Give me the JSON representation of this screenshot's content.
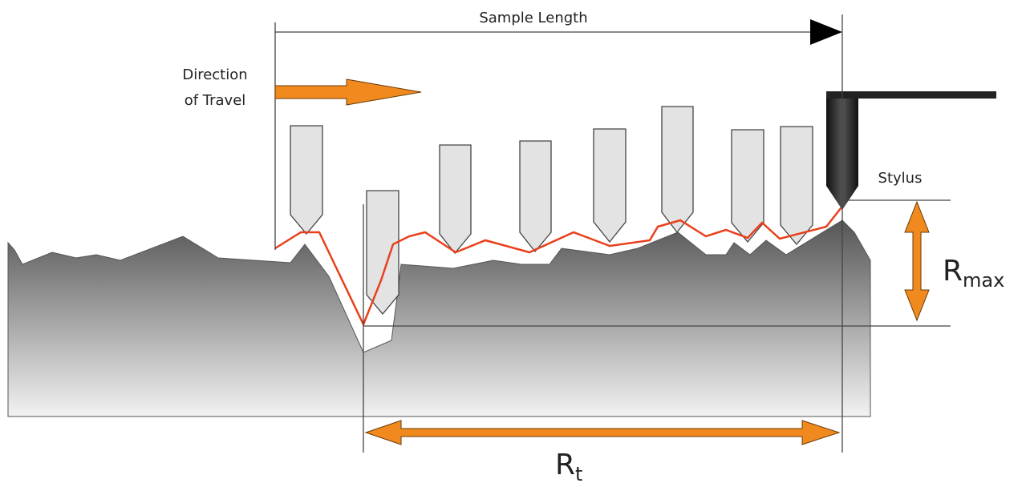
{
  "labels": {
    "sample_length": "Sample Length",
    "direction_of_travel": [
      "Direction",
      "of Travel"
    ],
    "stylus": "Stylus",
    "rmax": {
      "main": "R",
      "sub": "max"
    },
    "rt": {
      "main": "R",
      "sub": "t"
    }
  }
}
